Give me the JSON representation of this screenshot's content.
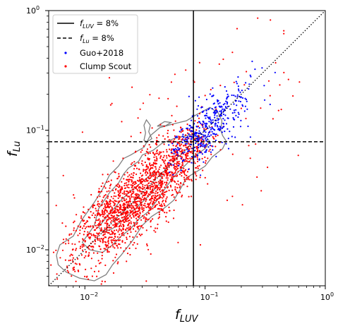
{
  "chart_data": {
    "type": "scatter",
    "xscale": "log",
    "yscale": "log",
    "xlim": [
      0.005,
      1
    ],
    "ylim": [
      0.005,
      1
    ],
    "xlabel": {
      "main": "f",
      "sub": "LUV"
    },
    "ylabel": {
      "main": "f",
      "sub": "Lu"
    },
    "xticks": [
      {
        "value": 0.01,
        "base": "10",
        "exp": "−2"
      },
      {
        "value": 0.1,
        "base": "10",
        "exp": "−1"
      },
      {
        "value": 1,
        "base": "10",
        "exp": "0"
      }
    ],
    "yticks": [
      {
        "value": 0.01,
        "base": "10",
        "exp": "−2"
      },
      {
        "value": 0.1,
        "base": "10",
        "exp": "−1"
      },
      {
        "value": 1,
        "base": "10",
        "exp": "0"
      }
    ],
    "legend_position": "top-left",
    "reference_lines": [
      {
        "type": "vertical",
        "x": 0.08,
        "style": "solid",
        "color": "#000000"
      },
      {
        "type": "horizontal",
        "y": 0.08,
        "style": "dashed",
        "color": "#000000"
      },
      {
        "type": "one-to-one",
        "style": "dotted",
        "color": "#000000"
      }
    ],
    "legend": [
      {
        "kind": "solid-line",
        "f": "f",
        "sub": "LUV",
        "rest": " = 8%",
        "color": "#000000"
      },
      {
        "kind": "dashed-line",
        "f": "f",
        "sub": "Lu",
        "rest": " = 8%",
        "color": "#000000"
      },
      {
        "kind": "marker",
        "label": "Guo+2018",
        "color": "#0000ff"
      },
      {
        "kind": "marker",
        "label": "Clump Scout",
        "color": "#ff0000"
      }
    ],
    "series": [
      {
        "name": "Guo+2018",
        "color": "#0000ff",
        "distribution": "log-normal cloud along 1:1 line",
        "x_range": [
          0.045,
          0.6
        ],
        "y_range": [
          0.025,
          0.6
        ]
      },
      {
        "name": "Clump Scout",
        "color": "#ff0000",
        "distribution": "log-normal cloud along 1:1 line",
        "x_range": [
          0.005,
          0.6
        ],
        "y_range": [
          0.005,
          0.6
        ]
      }
    ],
    "contours": {
      "color": "#808080",
      "levels": 3,
      "outer": [
        [
          0.0058,
          0.009
        ],
        [
          0.0062,
          0.011
        ],
        [
          0.008,
          0.013
        ],
        [
          0.0095,
          0.018
        ],
        [
          0.012,
          0.025
        ],
        [
          0.014,
          0.032
        ],
        [
          0.016,
          0.042
        ],
        [
          0.019,
          0.05
        ],
        [
          0.021,
          0.058
        ],
        [
          0.024,
          0.062
        ],
        [
          0.031,
          0.072
        ],
        [
          0.035,
          0.09
        ],
        [
          0.042,
          0.105
        ],
        [
          0.053,
          0.112
        ],
        [
          0.07,
          0.12
        ],
        [
          0.085,
          0.135
        ],
        [
          0.11,
          0.155
        ],
        [
          0.128,
          0.14
        ],
        [
          0.138,
          0.12
        ],
        [
          0.135,
          0.1
        ],
        [
          0.14,
          0.09
        ],
        [
          0.15,
          0.081
        ],
        [
          0.14,
          0.07
        ],
        [
          0.115,
          0.06
        ],
        [
          0.1,
          0.05
        ],
        [
          0.085,
          0.045
        ],
        [
          0.07,
          0.04
        ],
        [
          0.062,
          0.032
        ],
        [
          0.055,
          0.026
        ],
        [
          0.045,
          0.022
        ],
        [
          0.036,
          0.019
        ],
        [
          0.03,
          0.016
        ],
        [
          0.025,
          0.012
        ],
        [
          0.02,
          0.009
        ],
        [
          0.017,
          0.0075
        ],
        [
          0.015,
          0.0062
        ],
        [
          0.012,
          0.0055
        ],
        [
          0.009,
          0.0058
        ],
        [
          0.007,
          0.0065
        ],
        [
          0.006,
          0.0075
        ],
        [
          0.0058,
          0.009
        ]
      ],
      "middle": [
        [
          0.0095,
          0.0115
        ],
        [
          0.012,
          0.016
        ],
        [
          0.013,
          0.022
        ],
        [
          0.016,
          0.03
        ],
        [
          0.019,
          0.036
        ],
        [
          0.021,
          0.043
        ],
        [
          0.023,
          0.048
        ],
        [
          0.028,
          0.055
        ],
        [
          0.03,
          0.062
        ],
        [
          0.037,
          0.068
        ],
        [
          0.044,
          0.078
        ],
        [
          0.055,
          0.085
        ],
        [
          0.07,
          0.09
        ],
        [
          0.085,
          0.095
        ],
        [
          0.1,
          0.09
        ],
        [
          0.11,
          0.08
        ],
        [
          0.1,
          0.07
        ],
        [
          0.08,
          0.06
        ],
        [
          0.07,
          0.052
        ],
        [
          0.06,
          0.045
        ],
        [
          0.052,
          0.038
        ],
        [
          0.046,
          0.032
        ],
        [
          0.04,
          0.026
        ],
        [
          0.034,
          0.021
        ],
        [
          0.028,
          0.018
        ],
        [
          0.024,
          0.015
        ],
        [
          0.02,
          0.013
        ],
        [
          0.017,
          0.011
        ],
        [
          0.014,
          0.0095
        ],
        [
          0.011,
          0.01
        ],
        [
          0.0095,
          0.0115
        ]
      ],
      "inner": [
        [
          0.013,
          0.0155
        ],
        [
          0.016,
          0.02
        ],
        [
          0.02,
          0.026
        ],
        [
          0.024,
          0.031
        ],
        [
          0.029,
          0.036
        ],
        [
          0.034,
          0.041
        ],
        [
          0.04,
          0.045
        ],
        [
          0.044,
          0.043
        ],
        [
          0.042,
          0.036
        ],
        [
          0.036,
          0.03
        ],
        [
          0.03,
          0.025
        ],
        [
          0.025,
          0.021
        ],
        [
          0.021,
          0.018
        ],
        [
          0.017,
          0.015
        ],
        [
          0.014,
          0.014
        ],
        [
          0.013,
          0.0155
        ]
      ],
      "loop_a": [
        [
          0.031,
          0.082
        ],
        [
          0.032,
          0.095
        ],
        [
          0.031,
          0.11
        ],
        [
          0.0325,
          0.122
        ],
        [
          0.035,
          0.11
        ],
        [
          0.034,
          0.097
        ],
        [
          0.036,
          0.085
        ],
        [
          0.033,
          0.08
        ],
        [
          0.031,
          0.082
        ]
      ],
      "loop_b": [
        [
          0.04,
          0.108
        ],
        [
          0.046,
          0.118
        ],
        [
          0.052,
          0.116
        ],
        [
          0.047,
          0.109
        ],
        [
          0.04,
          0.108
        ]
      ]
    }
  }
}
